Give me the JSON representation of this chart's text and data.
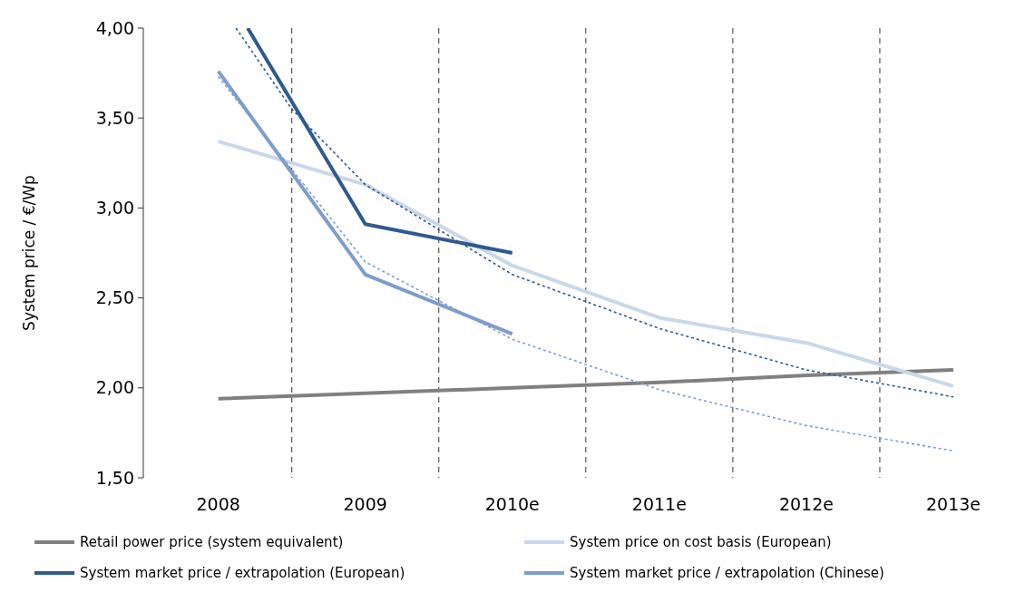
{
  "chart_data": {
    "type": "line",
    "ylabel": "System price  / €/Wp",
    "xlim": [
      2007.49,
      2013
    ],
    "xticks": [
      {
        "value": 2008,
        "label": "2008"
      },
      {
        "value": 2009,
        "label": "2009"
      },
      {
        "value": 2010,
        "label": "2010e"
      },
      {
        "value": 2011,
        "label": "2011e"
      },
      {
        "value": 2012,
        "label": "2012e"
      },
      {
        "value": 2013,
        "label": "2013e"
      }
    ],
    "ylim": [
      1.5,
      4.0
    ],
    "yticks": [
      {
        "value": 1.5,
        "label": "1,50"
      },
      {
        "value": 2.0,
        "label": "2,00"
      },
      {
        "value": 2.5,
        "label": "2,50"
      },
      {
        "value": 3.0,
        "label": "3,00"
      },
      {
        "value": 3.5,
        "label": "3,50"
      },
      {
        "value": 4.0,
        "label": "4,00"
      }
    ],
    "ref_lines": [
      {
        "axis": "x",
        "value": 2008.5,
        "line_style": "dashed"
      },
      {
        "axis": "x",
        "value": 2009.5,
        "line_style": "dashed"
      },
      {
        "axis": "x",
        "value": 2010.5,
        "line_style": "dashed"
      },
      {
        "axis": "x",
        "value": 2011.5,
        "line_style": "dashed"
      },
      {
        "axis": "x",
        "value": 2012.5,
        "line_style": "dashed"
      }
    ],
    "legend": "bottom",
    "marker": "none",
    "series": [
      {
        "name": "Retail power price (system equivalent)",
        "color": "#808080",
        "line_style": "solid",
        "x": [
          2008,
          2009,
          2010,
          2011,
          2012,
          2013
        ],
        "values": [
          1.94,
          1.97,
          2.0,
          2.03,
          2.07,
          2.1
        ]
      },
      {
        "name": "System price on cost basis (European)",
        "color": "#c9d7ea",
        "line_style": "solid",
        "x": [
          2008,
          2009,
          2010,
          2011,
          2012,
          2013
        ],
        "values": [
          3.37,
          3.13,
          2.68,
          2.39,
          2.25,
          2.01
        ]
      },
      {
        "name": "System market price / extrapolation (European)",
        "color": "#2e5a8f",
        "line_style": "solid",
        "x": [
          2008.2,
          2009,
          2010
        ],
        "values": [
          4.0,
          2.91,
          2.75
        ]
      },
      {
        "name": "System market price / extrapolation (Chinese)",
        "color": "#7e9dcc",
        "line_style": "solid",
        "x": [
          2008,
          2009,
          2010
        ],
        "values": [
          3.76,
          2.63,
          2.3
        ]
      },
      {
        "color": "#2e5a8f",
        "line_style": "dotted",
        "x": [
          2008.12,
          2008.5,
          2009,
          2010,
          2011,
          2012,
          2013
        ],
        "values": [
          4.0,
          3.55,
          3.13,
          2.63,
          2.33,
          2.1,
          1.95
        ]
      },
      {
        "color": "#7e9dcc",
        "line_style": "dotted",
        "x": [
          2008,
          2009,
          2010,
          2011,
          2012,
          2013
        ],
        "values": [
          3.73,
          2.7,
          2.27,
          1.99,
          1.79,
          1.65
        ]
      }
    ]
  }
}
